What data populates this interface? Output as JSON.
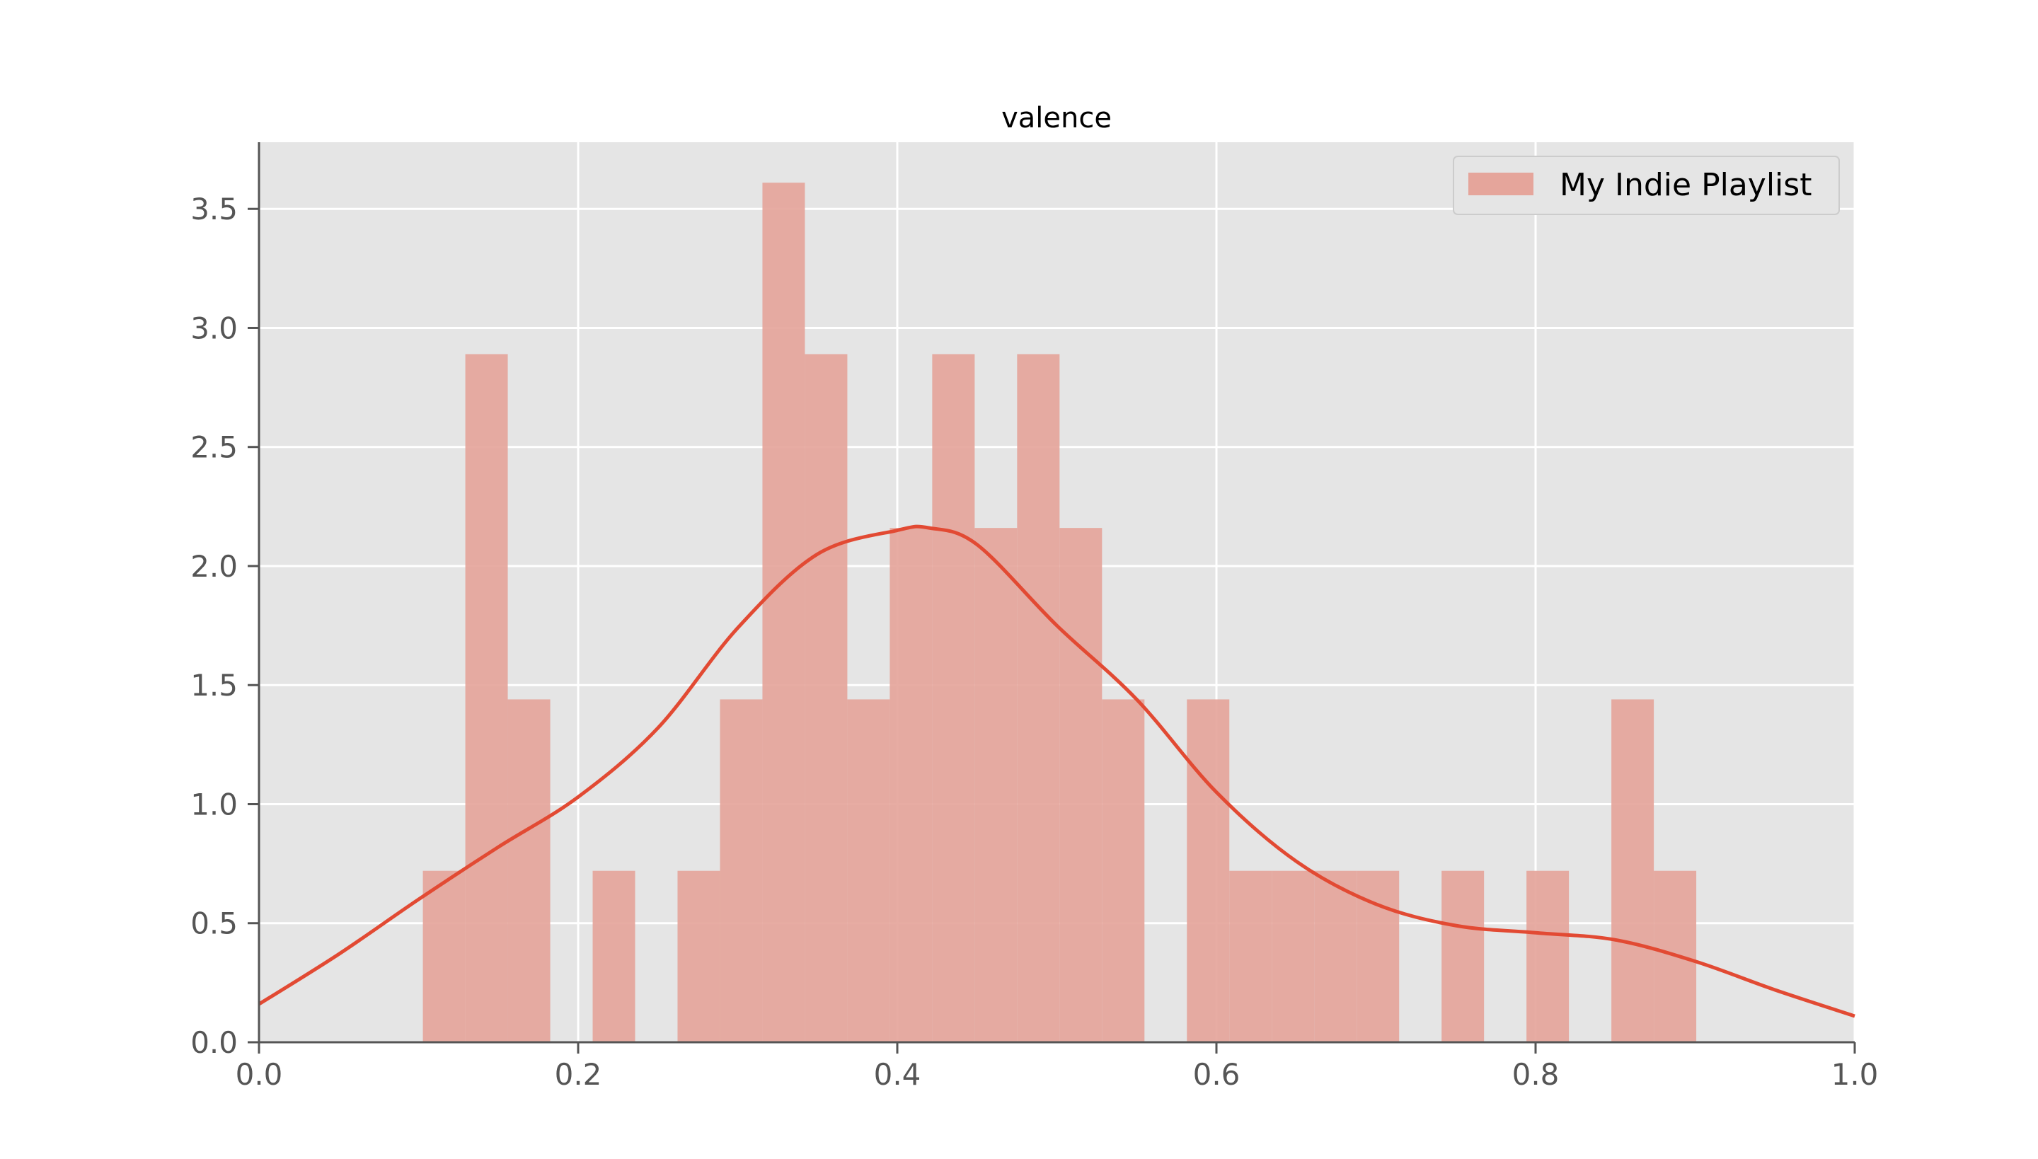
{
  "chart_data": {
    "type": "bar",
    "title": "valence",
    "xlabel": "",
    "ylabel": "",
    "xlim": [
      0.0,
      1.0
    ],
    "ylim": [
      0.0,
      3.78
    ],
    "x_ticks": [
      "0.0",
      "0.2",
      "0.4",
      "0.6",
      "0.8",
      "1.0"
    ],
    "y_ticks": [
      "0.0",
      "0.5",
      "1.0",
      "1.5",
      "2.0",
      "2.5",
      "3.0",
      "3.5"
    ],
    "grid": true,
    "legend_position": "top-right",
    "colors": {
      "background": "#e5e5e5",
      "grid": "#ffffff",
      "bar": "#e5a59b",
      "line": "#e24a33"
    },
    "series": [
      {
        "name": "My Indie Playlist",
        "type": "histogram",
        "bin_edges": [
          0.1027,
          0.1293,
          0.1559,
          0.1825,
          0.2091,
          0.2357,
          0.2623,
          0.2889,
          0.3155,
          0.3421,
          0.3687,
          0.3953,
          0.4219,
          0.4485,
          0.4751,
          0.5017,
          0.5283,
          0.5549,
          0.5815,
          0.6081,
          0.6347,
          0.6613,
          0.6879,
          0.7145,
          0.7411,
          0.7677,
          0.7943,
          0.8209,
          0.8475,
          0.8741,
          0.9007
        ],
        "values": [
          0.72,
          2.89,
          1.44,
          0.0,
          0.72,
          0.0,
          0.72,
          1.44,
          3.61,
          2.89,
          1.44,
          2.16,
          2.89,
          2.16,
          2.89,
          2.16,
          1.44,
          0.0,
          1.44,
          0.72,
          0.72,
          0.72,
          0.72,
          0.0,
          0.72,
          0.0,
          0.72,
          0.0,
          1.44,
          0.72
        ]
      },
      {
        "type": "kde",
        "x": [
          0.0,
          0.05,
          0.1,
          0.15,
          0.2,
          0.25,
          0.3,
          0.35,
          0.4,
          0.42,
          0.45,
          0.5,
          0.55,
          0.6,
          0.65,
          0.7,
          0.75,
          0.8,
          0.85,
          0.9,
          0.95,
          1.0
        ],
        "values": [
          0.16,
          0.37,
          0.6,
          0.82,
          1.03,
          1.32,
          1.74,
          2.05,
          2.15,
          2.16,
          2.09,
          1.75,
          1.44,
          1.05,
          0.76,
          0.58,
          0.49,
          0.46,
          0.43,
          0.34,
          0.22,
          0.11
        ]
      }
    ]
  }
}
